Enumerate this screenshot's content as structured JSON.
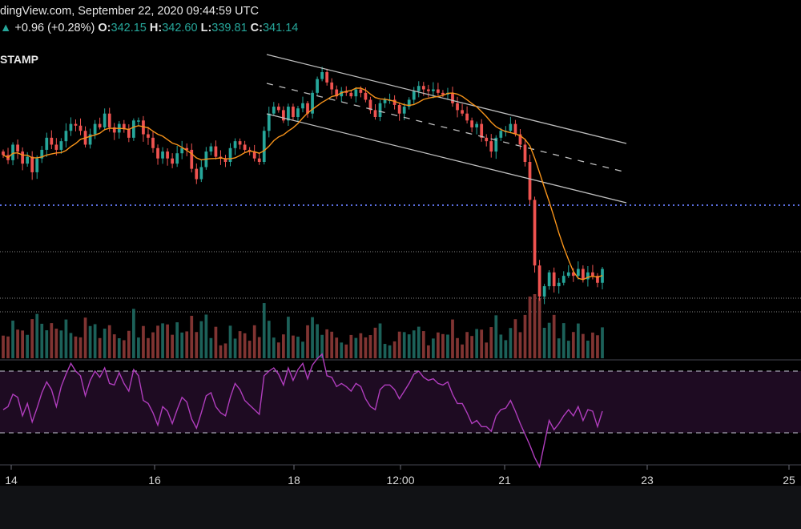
{
  "header": {
    "source_line": "dingView.com, September 22, 2020 09:44:59 UTC",
    "change": "+0.96 (+0.28%)",
    "ohlc": [
      {
        "label": "O:",
        "value": "342.15"
      },
      {
        "label": "H:",
        "value": "342.60"
      },
      {
        "label": "L:",
        "value": "339.81"
      },
      {
        "label": "C:",
        "value": "341.14"
      }
    ],
    "symbol": "STAMP"
  },
  "colors": {
    "background": "#000000",
    "candle_up": "#26a69a",
    "candle_down": "#ef5350",
    "ma_line": "#f7931a",
    "channel": "#bfbfbf",
    "support": "#5b6ee1",
    "rsi_line": "#b03dbd",
    "rsi_band": "#1e0b22"
  },
  "chart_data": {
    "type": "candlestick",
    "x_ticks": [
      "14",
      "16",
      "18",
      "12:00",
      "21",
      "23",
      "25"
    ],
    "price_close": [
      338.0,
      336.5,
      341.0,
      339.0,
      335.5,
      337.5,
      333.0,
      337.0,
      339.5,
      343.0,
      341.0,
      339.5,
      342.0,
      345.0,
      347.0,
      346.5,
      345.0,
      341.0,
      344.0,
      347.0,
      346.0,
      350.0,
      346.0,
      344.5,
      347.0,
      345.5,
      343.0,
      348.0,
      348.0,
      344.0,
      343.0,
      340.0,
      337.0,
      339.0,
      337.0,
      335.5,
      338.5,
      340.0,
      339.5,
      334.0,
      331.0,
      334.5,
      339.0,
      340.5,
      337.5,
      337.0,
      336.0,
      340.0,
      342.0,
      341.0,
      339.5,
      339.0,
      337.0,
      336.0,
      345.0,
      350.0,
      352.0,
      351.0,
      348.0,
      352.0,
      349.0,
      351.5,
      353.0,
      350.0,
      356.0,
      360.0,
      362.0,
      359.0,
      357.0,
      355.0,
      356.5,
      356.0,
      355.0,
      357.0,
      356.0,
      354.0,
      351.0,
      349.0,
      353.0,
      354.0,
      354.0,
      352.5,
      350.0,
      352.0,
      354.0,
      356.5,
      358.0,
      357.0,
      356.5,
      357.0,
      356.0,
      355.5,
      356.0,
      353.0,
      351.0,
      350.0,
      348.0,
      346.0,
      347.0,
      343.0,
      342.0,
      339.0,
      343.0,
      345.0,
      345.0,
      347.0,
      344.0,
      341.0,
      336.0,
      325.0,
      306.0,
      297.0,
      300.0,
      304.0,
      300.0,
      301.0,
      303.0,
      304.0,
      303.0,
      305.0,
      302.0,
      304.0,
      303.0,
      301.0,
      305.0
    ],
    "rsi": [
      45,
      47,
      55,
      53,
      41,
      49,
      37,
      46,
      56,
      63,
      58,
      47,
      60,
      68,
      75,
      70,
      67,
      54,
      64,
      70,
      66,
      72,
      62,
      61,
      69,
      62,
      57,
      71,
      67,
      51,
      49,
      43,
      35,
      47,
      44,
      36,
      45,
      53,
      50,
      39,
      33,
      43,
      54,
      56,
      47,
      43,
      41,
      53,
      62,
      58,
      51,
      48,
      45,
      42,
      67,
      70,
      72,
      68,
      61,
      72,
      64,
      71,
      75,
      65,
      74,
      78,
      81,
      67,
      66,
      60,
      62,
      60,
      57,
      62,
      60,
      52,
      47,
      45,
      58,
      61,
      61,
      58,
      52,
      57,
      62,
      68,
      70,
      66,
      64,
      65,
      62,
      61,
      63,
      55,
      49,
      49,
      43,
      36,
      38,
      34,
      34,
      31,
      41,
      45,
      46,
      51,
      44,
      36,
      29,
      22,
      14,
      8,
      23,
      38,
      32,
      36,
      41,
      45,
      41,
      47,
      38,
      45,
      44,
      34,
      44
    ]
  }
}
